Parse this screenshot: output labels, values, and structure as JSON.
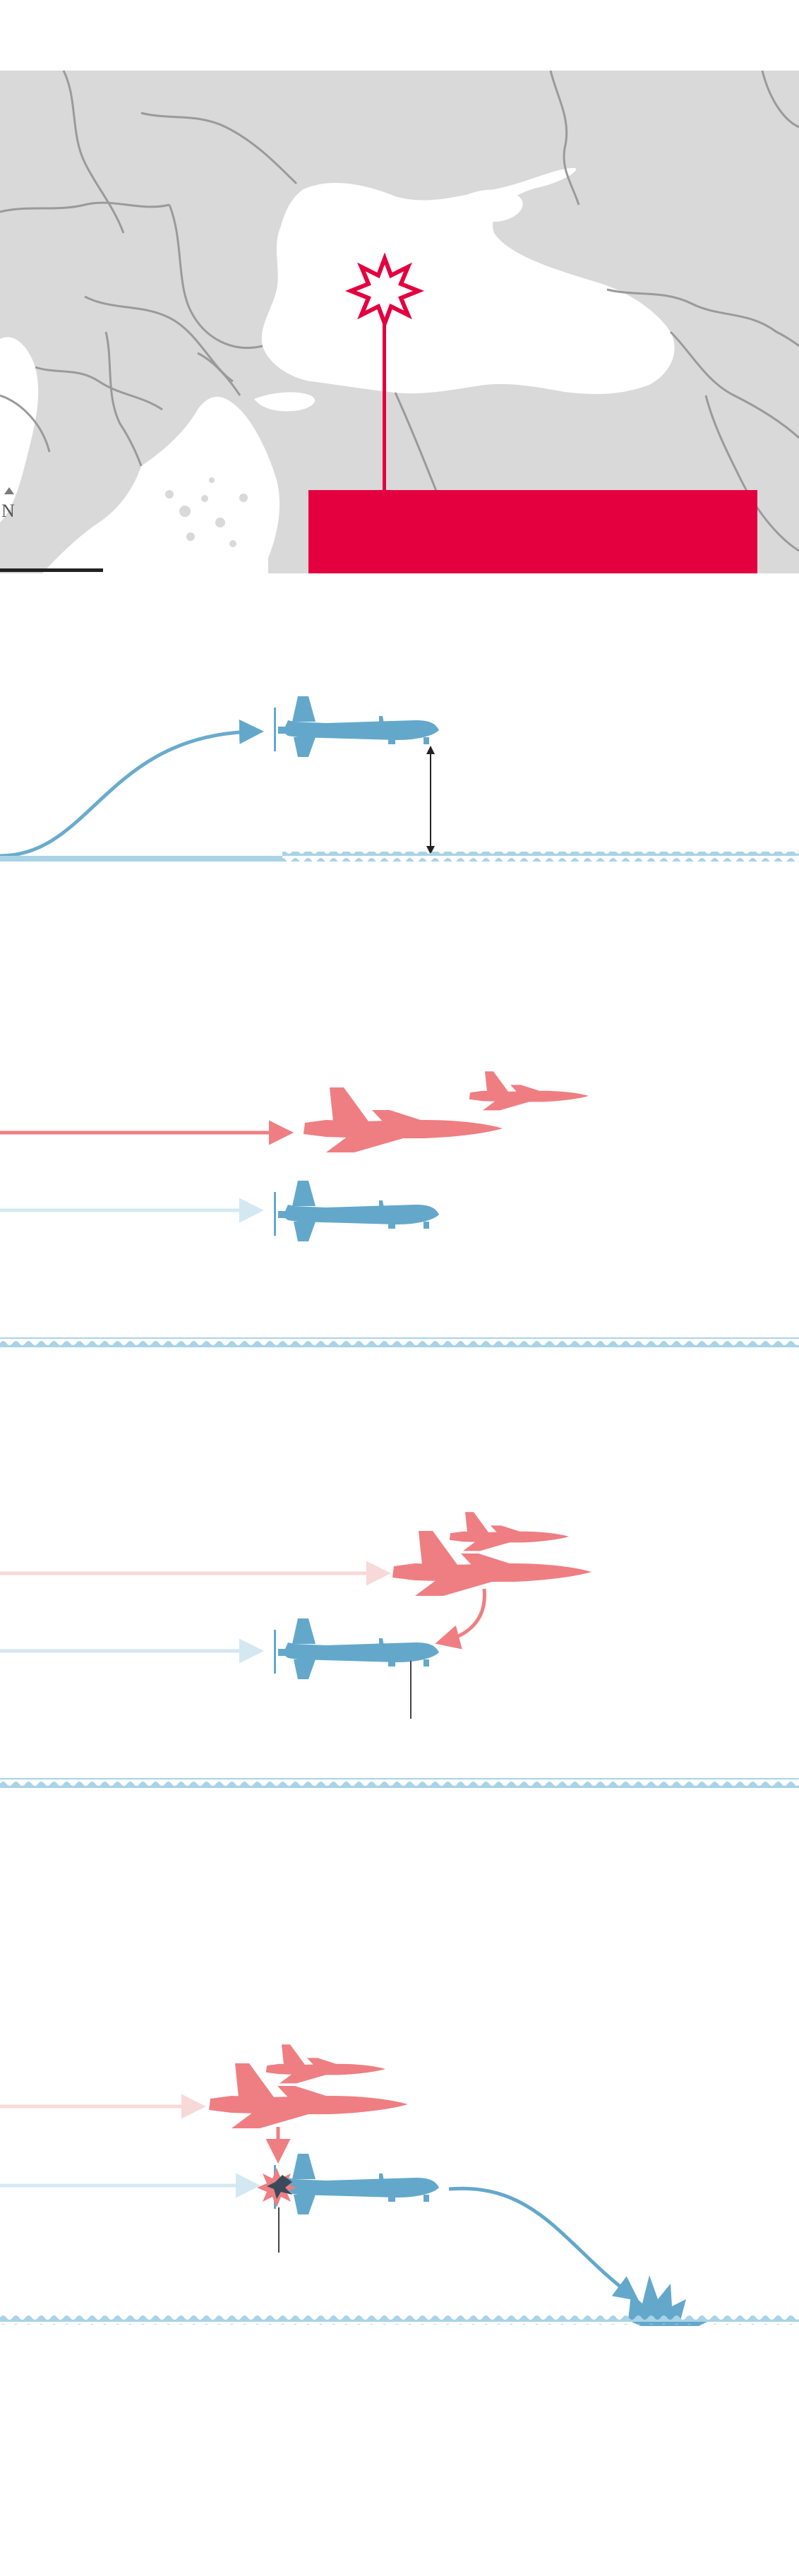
{
  "map": {
    "north_label": "N",
    "land_color": "#d9d9d9",
    "water_color": "#ffffff",
    "border_color": "#9a9a9a",
    "callout_color": "#e4003f",
    "callout_text": ""
  },
  "colors": {
    "drone": "#63a8cb",
    "drone_trail": "#6aabcc",
    "drone_trail_faded": "#d4e8f2",
    "jet": "#ee7e82",
    "jet_trail": "#ee7e82",
    "jet_trail_faded": "#f8d9da",
    "sea": "#a9d3e6",
    "explosion": "#e4003f",
    "dark_burst": "#3b4a5a"
  },
  "panels": [
    {
      "id": "takeoff",
      "caption": ""
    },
    {
      "id": "intercept",
      "caption": ""
    },
    {
      "id": "fuel-dump",
      "caption": ""
    },
    {
      "id": "collision",
      "caption": ""
    }
  ]
}
